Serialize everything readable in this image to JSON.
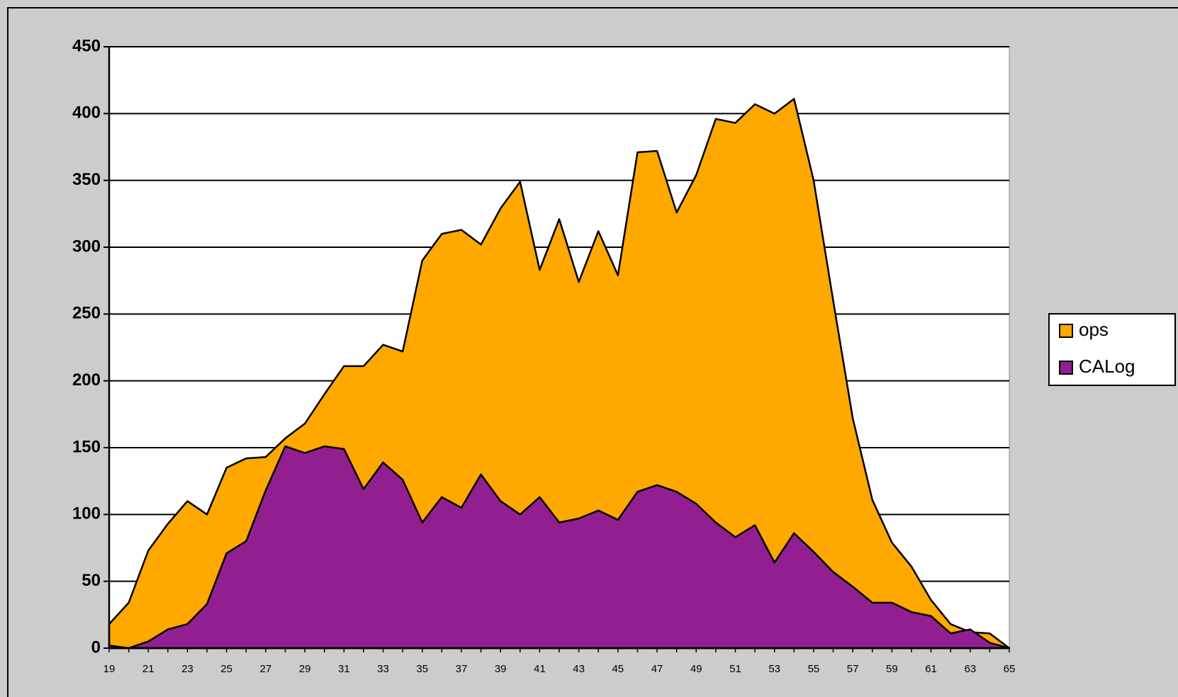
{
  "chart_data": {
    "type": "area",
    "stacked": false,
    "categories": [
      19,
      null,
      21,
      null,
      23,
      null,
      25,
      null,
      27,
      null,
      29,
      null,
      31,
      null,
      33,
      null,
      35,
      null,
      37,
      null,
      39,
      null,
      41,
      null,
      43,
      null,
      45,
      null,
      47,
      null,
      49,
      null,
      51,
      null,
      53,
      null,
      55,
      null,
      57,
      null,
      59,
      null,
      61,
      null,
      63,
      null,
      65
    ],
    "series": [
      {
        "name": "ops",
        "color": "#ffa800",
        "values": [
          18,
          34,
          73,
          93,
          110,
          100,
          135,
          142,
          143,
          157,
          168,
          190,
          211,
          211,
          227,
          222,
          290,
          310,
          313,
          302,
          329,
          349,
          283,
          321,
          274,
          312,
          279,
          371,
          372,
          326,
          354,
          396,
          393,
          407,
          400,
          411,
          350,
          260,
          172,
          111,
          79,
          61,
          36,
          18,
          12,
          11,
          0
        ]
      },
      {
        "name": "CALog",
        "color": "#921f8f",
        "values": [
          2,
          0,
          5,
          14,
          18,
          33,
          71,
          80,
          118,
          151,
          146,
          151,
          149,
          119,
          139,
          126,
          94,
          113,
          105,
          130,
          110,
          100,
          113,
          94,
          97,
          103,
          96,
          117,
          122,
          117,
          108,
          94,
          83,
          92,
          64,
          86,
          72,
          57,
          46,
          34,
          34,
          27,
          24,
          11,
          14,
          4,
          0
        ]
      }
    ],
    "ylim": [
      0,
      450
    ],
    "yticks": [
      0,
      50,
      100,
      150,
      200,
      250,
      300,
      350,
      400,
      450
    ],
    "grid": true,
    "legend": "right"
  }
}
